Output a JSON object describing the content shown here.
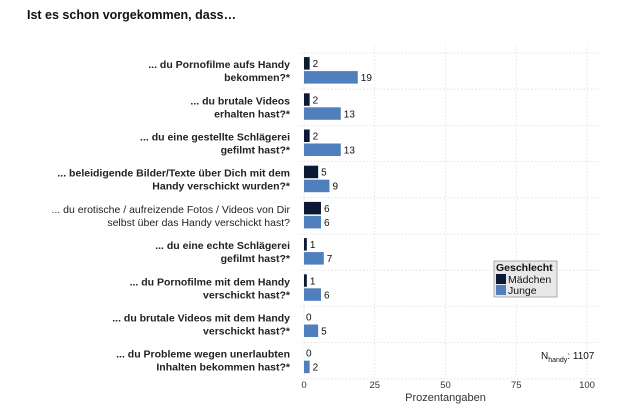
{
  "title": "Ist es schon vorgekommen, dass…",
  "chart_data": {
    "type": "bar",
    "orientation": "horizontal",
    "categories": [
      {
        "lines": [
          "... du Pornofilme aufs Handy",
          "bekommen?*"
        ],
        "bold": true
      },
      {
        "lines": [
          "... du brutale Videos",
          "erhalten hast?*"
        ],
        "bold": true
      },
      {
        "lines": [
          "... du eine gestellte Schlägerei",
          "gefilmt hast?*"
        ],
        "bold": true
      },
      {
        "lines": [
          "... beleidigende Bilder/Texte über Dich mit dem",
          "Handy verschickt wurden?*"
        ],
        "bold": true
      },
      {
        "lines": [
          "... du erotische / aufreizende Fotos / Videos von Dir",
          "selbst über das Handy verschickt hast?"
        ],
        "bold": false
      },
      {
        "lines": [
          "... du eine echte Schlägerei",
          "gefilmt hast?*"
        ],
        "bold": true
      },
      {
        "lines": [
          "... du Pornofilme mit dem Handy",
          "verschickt hast?*"
        ],
        "bold": true
      },
      {
        "lines": [
          "... du brutale Videos mit dem Handy",
          "verschickt hast?*"
        ],
        "bold": true
      },
      {
        "lines": [
          "... du Probleme wegen unerlaubten",
          "Inhalten bekommen hast?*"
        ],
        "bold": true
      }
    ],
    "series": [
      {
        "name": "Mädchen",
        "color": "#0b1836",
        "values": [
          2,
          2,
          2,
          5,
          6,
          1,
          1,
          0,
          0
        ]
      },
      {
        "name": "Junge",
        "color": "#4f7fbd",
        "values": [
          19,
          13,
          13,
          9,
          6,
          7,
          6,
          5,
          2
        ]
      }
    ],
    "xlabel": "Prozentangaben",
    "xlim": [
      0,
      100
    ],
    "xticks": [
      0,
      25,
      50,
      75,
      100
    ],
    "grid": true,
    "legend": {
      "title": "Geschlecht",
      "placement": "right"
    },
    "annotation": {
      "base": "N",
      "subscript": "handy",
      "text": ": 1107"
    }
  }
}
